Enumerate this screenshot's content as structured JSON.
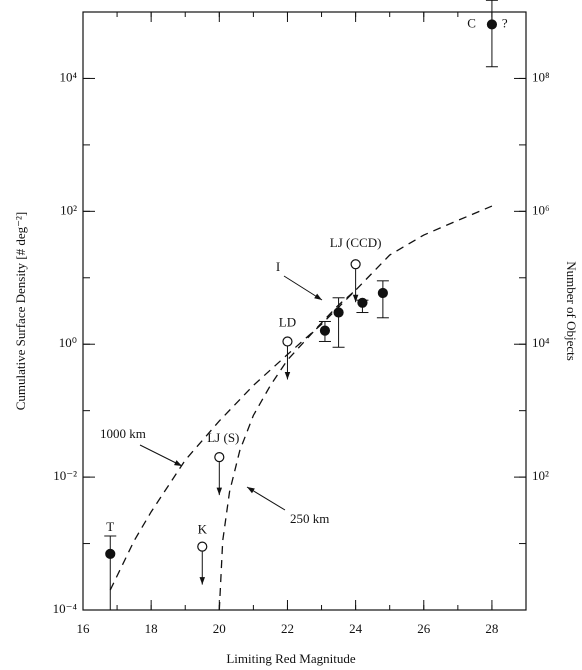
{
  "chart_data": {
    "type": "scatter",
    "xlabel": "Limiting Red Magnitude",
    "ylabel": "Cumulative Surface Density [# deg⁻²]",
    "y2label": "Number of Objects",
    "xlim": [
      16,
      29
    ],
    "xticks": [
      16,
      18,
      20,
      22,
      24,
      26,
      28
    ],
    "ylim": [
      0.0001,
      100000
    ],
    "yscale": "log",
    "yticks": [
      {
        "value": 0.0001,
        "label": "10⁻⁴"
      },
      {
        "value": 0.01,
        "label": "10⁻²"
      },
      {
        "value": 1,
        "label": "10⁰"
      },
      {
        "value": 100,
        "label": "10²"
      },
      {
        "value": 10000,
        "label": "10⁴"
      }
    ],
    "y2lim": [
      1,
      1000000000
    ],
    "y2ticks": [
      {
        "value": 100,
        "label": "10²"
      },
      {
        "value": 10000,
        "label": "10⁴"
      },
      {
        "value": 1000000,
        "label": "10⁶"
      },
      {
        "value": 100000000,
        "label": "10⁸"
      }
    ],
    "points": [
      {
        "label": "T",
        "x": 16.8,
        "y": 0.0007,
        "ylow": 0.0001,
        "yhigh": 0.0013,
        "filled": true
      },
      {
        "label": "K",
        "x": 19.5,
        "y": 0.0009,
        "filled": false,
        "upper_limit": true
      },
      {
        "label": "LJ (S)",
        "x": 20,
        "y": 0.02,
        "filled": false,
        "upper_limit": true
      },
      {
        "label": "LD",
        "x": 22,
        "y": 1.1,
        "filled": false,
        "upper_limit": true
      },
      {
        "label": "LJ (CCD)",
        "x": 24,
        "y": 16,
        "filled": false,
        "upper_limit": true
      },
      {
        "x": 23.1,
        "y": 1.6,
        "ylow": 1.1,
        "yhigh": 2.2,
        "filled": true
      },
      {
        "x": 23.5,
        "y": 3,
        "ylow": 0.9,
        "yhigh": 5,
        "filled": true
      },
      {
        "x": 24.2,
        "y": 4.2,
        "ylow": 3,
        "yhigh": 4.6,
        "filled": true
      },
      {
        "x": 24.8,
        "y": 5.9,
        "ylow": 2.5,
        "yhigh": 9,
        "filled": true
      },
      {
        "label": "C",
        "x": 28,
        "y": 65000,
        "ylow": 15000,
        "yhigh": 150000,
        "filled": true
      }
    ],
    "series": [
      {
        "name": "1000 km",
        "x": [
          16.8,
          17.5,
          18,
          19,
          20,
          21,
          22,
          23,
          24,
          25,
          26,
          27,
          28
        ],
        "values": [
          0.0002,
          0.0011,
          0.003,
          0.018,
          0.07,
          0.24,
          0.7,
          2,
          6.5,
          22,
          44,
          73,
          120
        ]
      },
      {
        "name": "250 km",
        "x": [
          20,
          20.1,
          20.3,
          20.6,
          21,
          21.5,
          22,
          22.5,
          23,
          23.5,
          24
        ],
        "values": [
          0.0001,
          0.0011,
          0.006,
          0.025,
          0.085,
          0.24,
          0.58,
          1.1,
          2.1,
          3.9,
          6.5
        ]
      }
    ],
    "annotations": [
      "I",
      "?"
    ]
  }
}
